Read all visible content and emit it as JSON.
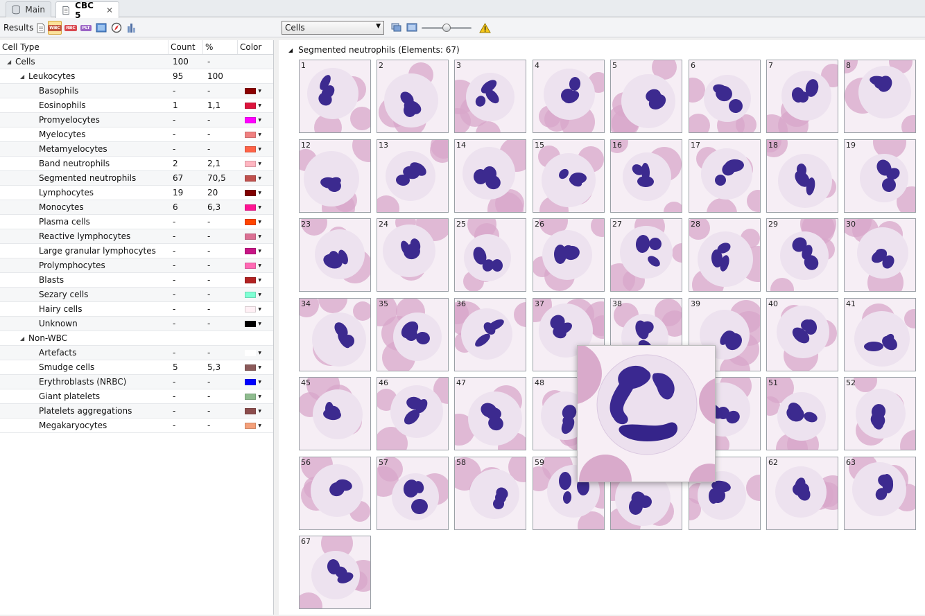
{
  "tabs": [
    {
      "label": "Main",
      "icon": "database-icon",
      "active": false
    },
    {
      "label": "CBC 5",
      "icon": "document-icon",
      "active": true
    }
  ],
  "toolbar": {
    "results_label": "Results",
    "buttons": [
      {
        "name": "report-icon",
        "label": ""
      },
      {
        "name": "wbc-icon",
        "label": "WBC",
        "active": true
      },
      {
        "name": "rbc-icon",
        "label": "RBC"
      },
      {
        "name": "plt-icon",
        "label": "PLT"
      },
      {
        "name": "slide-icon",
        "label": ""
      },
      {
        "name": "compass-icon",
        "label": ""
      },
      {
        "name": "chart-icon",
        "label": ""
      }
    ],
    "view_select": "Cells",
    "zoom_level": 0.5,
    "warning_icon": "warning-icon"
  },
  "table": {
    "columns": [
      "Cell Type",
      "Count",
      "%",
      "Color"
    ],
    "rows": [
      {
        "name": "Cells",
        "level": 0,
        "expander": "expanded",
        "count": "100",
        "pct": "-",
        "color": ""
      },
      {
        "name": "Leukocytes",
        "level": 1,
        "expander": "expanded",
        "count": "95",
        "pct": "100",
        "color": ""
      },
      {
        "name": "Basophils",
        "level": 2,
        "count": "-",
        "pct": "-",
        "color": "#8b0000"
      },
      {
        "name": "Eosinophils",
        "level": 2,
        "count": "1",
        "pct": "1,1",
        "color": "#dc143c"
      },
      {
        "name": "Promyelocytes",
        "level": 2,
        "count": "-",
        "pct": "-",
        "color": "#ff00ff"
      },
      {
        "name": "Myelocytes",
        "level": 2,
        "count": "-",
        "pct": "-",
        "color": "#f08080"
      },
      {
        "name": "Metamyelocytes",
        "level": 2,
        "count": "-",
        "pct": "-",
        "color": "#ff6347"
      },
      {
        "name": "Band neutrophils",
        "level": 2,
        "count": "2",
        "pct": "2,1",
        "color": "#ffb6c1"
      },
      {
        "name": "Segmented neutrophils",
        "level": 2,
        "count": "67",
        "pct": "70,5",
        "color": "#c0504d"
      },
      {
        "name": "Lymphocytes",
        "level": 2,
        "count": "19",
        "pct": "20",
        "color": "#800000"
      },
      {
        "name": "Monocytes",
        "level": 2,
        "count": "6",
        "pct": "6,3",
        "color": "#ff1493"
      },
      {
        "name": "Plasma cells",
        "level": 2,
        "count": "-",
        "pct": "-",
        "color": "#ff4500"
      },
      {
        "name": "Reactive lymphocytes",
        "level": 2,
        "count": "-",
        "pct": "-",
        "color": "#db7093"
      },
      {
        "name": "Large granular lymphocytes",
        "level": 2,
        "count": "-",
        "pct": "-",
        "color": "#c71585"
      },
      {
        "name": "Prolymphocytes",
        "level": 2,
        "count": "-",
        "pct": "-",
        "color": "#ff69b4"
      },
      {
        "name": "Blasts",
        "level": 2,
        "count": "-",
        "pct": "-",
        "color": "#b22222"
      },
      {
        "name": "Sezary cells",
        "level": 2,
        "count": "-",
        "pct": "-",
        "color": "#7fffd4"
      },
      {
        "name": "Hairy cells",
        "level": 2,
        "count": "-",
        "pct": "-",
        "color": "#fff0f5"
      },
      {
        "name": "Unknown",
        "level": 2,
        "count": "-",
        "pct": "-",
        "color": "#000000"
      },
      {
        "name": "Non-WBC",
        "level": 1,
        "expander": "expanded",
        "count": "",
        "pct": "",
        "color": ""
      },
      {
        "name": "Artefacts",
        "level": 2,
        "count": "-",
        "pct": "-",
        "color": "#ffffff"
      },
      {
        "name": "Smudge cells",
        "level": 2,
        "count": "5",
        "pct": "5,3",
        "color": "#8b5a5a"
      },
      {
        "name": "Erythroblasts (NRBC)",
        "level": 2,
        "count": "-",
        "pct": "-",
        "color": "#0000ff"
      },
      {
        "name": "Giant platelets",
        "level": 2,
        "count": "-",
        "pct": "-",
        "color": "#8fbc8f"
      },
      {
        "name": "Platelets aggregations",
        "level": 2,
        "count": "-",
        "pct": "-",
        "color": "#8b4c4c"
      },
      {
        "name": "Megakaryocytes",
        "level": 2,
        "count": "-",
        "pct": "-",
        "color": "#f4a07a"
      }
    ]
  },
  "gallery": {
    "header": "Segmented neutrophils (Elements: 67)",
    "numbers": [
      "1",
      "2",
      "3",
      "4",
      "5",
      "6",
      "7",
      "8",
      "12",
      "13",
      "14",
      "15",
      "16",
      "17",
      "18",
      "19",
      "23",
      "24",
      "25",
      "26",
      "27",
      "28",
      "29",
      "30",
      "34",
      "35",
      "36",
      "37",
      "38",
      "39",
      "40",
      "41",
      "45",
      "46",
      "47",
      "48",
      "",
      "",
      "51",
      "52",
      "56",
      "57",
      "58",
      "59",
      "",
      "",
      "62",
      "63",
      "67"
    ],
    "colors": {
      "cytoplasm": "#ede2ef",
      "nucleus": "#3c2a8f",
      "rbc": "#d8a7c9",
      "background": "#f6eef5"
    }
  }
}
